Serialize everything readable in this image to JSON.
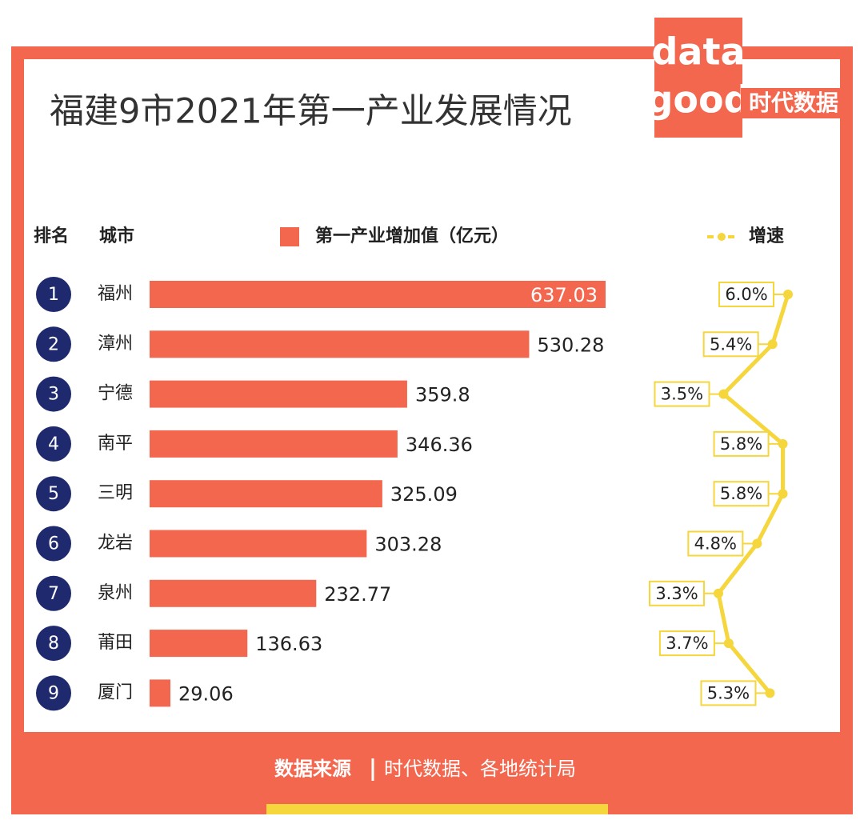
{
  "title": "福建9市2021年第一产业发展情况",
  "logo": {
    "top": "data",
    "bottom": "good",
    "tag": "时代数据"
  },
  "headers": {
    "rank": "排名",
    "city": "城市"
  },
  "chart_data": {
    "type": "bar",
    "categories": [
      "福州",
      "漳州",
      "宁德",
      "南平",
      "三明",
      "龙岩",
      "泉州",
      "莆田",
      "厦门"
    ],
    "ranks": [
      1,
      2,
      3,
      4,
      5,
      6,
      7,
      8,
      9
    ],
    "series": [
      {
        "name": "第一产业增加值（亿元）",
        "color": "#f4674f",
        "values": [
          637.03,
          530.28,
          359.8,
          346.36,
          325.09,
          303.28,
          232.77,
          136.63,
          29.06
        ]
      },
      {
        "name": "增速",
        "color": "#f5d63d",
        "axis": "y2",
        "values": [
          6.0,
          5.4,
          3.5,
          5.8,
          5.8,
          4.8,
          3.3,
          3.7,
          5.3
        ],
        "value_labels": [
          "6.0%",
          "5.4%",
          "3.5%",
          "5.8%",
          "5.8%",
          "4.8%",
          "3.3%",
          "3.7%",
          "5.3%"
        ]
      }
    ]
  },
  "source": {
    "label": "数据来源",
    "text": "时代数据、各地统计局"
  }
}
